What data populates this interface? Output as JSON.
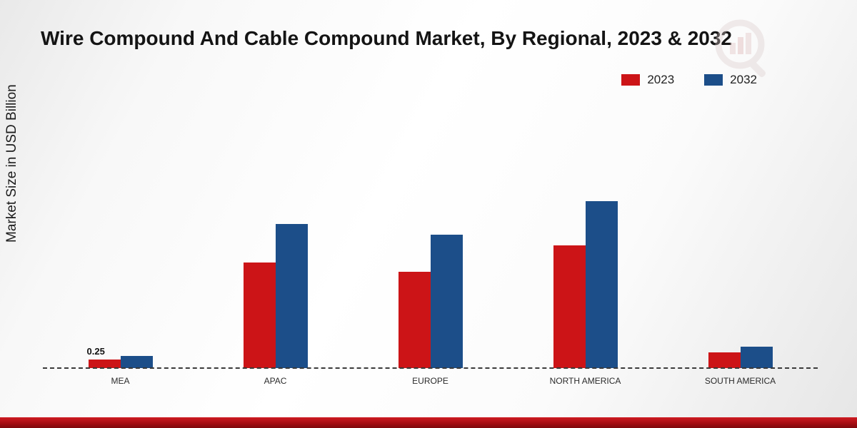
{
  "title": "Wire Compound And Cable Compound Market, By Regional, 2023 & 2032",
  "y_axis_label": "Market Size in USD Billion",
  "legend": [
    {
      "label": "2023",
      "color": "#cc1417"
    },
    {
      "label": "2032",
      "color": "#1c4e89"
    }
  ],
  "colors": {
    "series_2023": "#cc1417",
    "series_2032": "#1c4e89",
    "footer_strip": "#a50d12",
    "baseline": "#3a3a3a"
  },
  "chart_data": {
    "type": "bar",
    "categories": [
      "MEA",
      "APAC",
      "EUROPE",
      "NORTH AMERICA",
      "SOUTH AMERICA"
    ],
    "series": [
      {
        "name": "2023",
        "color": "#cc1417",
        "values": [
          0.25,
          3.0,
          2.75,
          3.5,
          0.45
        ]
      },
      {
        "name": "2032",
        "color": "#1c4e89",
        "values": [
          0.35,
          4.1,
          3.8,
          4.75,
          0.6
        ]
      }
    ],
    "title": "Wire Compound And Cable Compound Market, By Regional, 2023 & 2032",
    "xlabel": "",
    "ylabel": "Market Size in USD Billion",
    "ylim": [
      0,
      5
    ],
    "grid": false,
    "legend_position": "top-right",
    "annotations": [
      {
        "series": "2023",
        "category": "MEA",
        "text": "0.25"
      }
    ]
  }
}
